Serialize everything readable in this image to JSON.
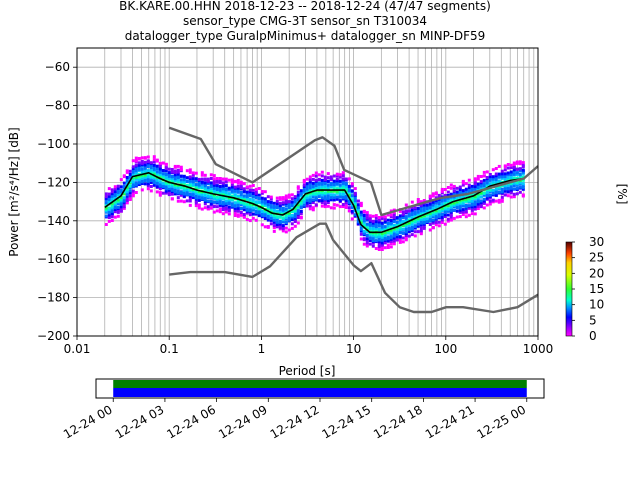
{
  "chart_data": [
    {
      "type": "heatmap",
      "title": [
        "BK.KARE.00.HHN   2018-12-23 -- 2018-12-24  (47/47 segments)",
        "sensor_type CMG-3T sensor_sn T310034",
        "datalogger_type GuralpMinimus+ datalogger_sn MINP-DF59"
      ],
      "xlabel": "Period [s]",
      "ylabel": "Power [m²/s⁴/Hz] [dB]",
      "x_scale": "log",
      "xlim": [
        0.01,
        1000
      ],
      "ylim": [
        -200,
        -50
      ],
      "x_ticks": [
        0.01,
        0.1,
        1,
        10,
        100,
        1000
      ],
      "x_tick_labels": [
        "0.01",
        "0.1",
        "1",
        "10",
        "100",
        "1000"
      ],
      "y_ticks": [
        -200,
        -180,
        -160,
        -140,
        -120,
        -100,
        -80,
        -60
      ],
      "y_tick_labels": [
        "−200",
        "−180",
        "−160",
        "−140",
        "−120",
        "−100",
        "−80",
        "−60"
      ],
      "grid": true,
      "series": [
        {
          "name": "",
          "color": "#000000",
          "x": [
            0.02,
            0.03,
            0.04,
            0.06,
            0.08,
            0.1,
            0.15,
            0.2,
            0.3,
            0.5,
            0.8,
            1.0,
            1.3,
            1.7,
            2.2,
            3.0,
            4.0,
            5.0,
            6.5,
            8.0,
            10,
            12,
            15,
            20,
            30,
            50,
            80,
            120,
            200,
            300,
            500,
            700
          ],
          "y": [
            -133,
            -127,
            -117,
            -115,
            -118,
            -120,
            -122,
            -124,
            -126,
            -128,
            -131,
            -133,
            -136,
            -137,
            -134,
            -126,
            -124,
            -124,
            -124,
            -124,
            -132,
            -142,
            -146,
            -146,
            -143,
            -138,
            -134,
            -130,
            -127,
            -122,
            -119,
            -118
          ]
        },
        {
          "name": "",
          "color": "#666666",
          "x": [
            0.1,
            0.22,
            0.32,
            0.8,
            3.8,
            4.6,
            6.2,
            7.9,
            15.4,
            20,
            46,
            63,
            90,
            175,
            700,
            1000
          ],
          "y": [
            -91.5,
            -97.4,
            -110.5,
            -120,
            -98,
            -96.5,
            -101,
            -113.5,
            -120,
            -137,
            -132,
            -130,
            -128,
            -126,
            -118,
            -111.5
          ]
        },
        {
          "name": "",
          "color": "#666666",
          "x": [
            0.1,
            0.17,
            0.4,
            0.8,
            1.24,
            2.4,
            4.3,
            5.0,
            6.0,
            10,
            12,
            15.6,
            21.9,
            31.6,
            45,
            70,
            101,
            154,
            328,
            600,
            1000
          ],
          "y": [
            -168,
            -166.7,
            -166.7,
            -169.2,
            -163.7,
            -148.6,
            -141.5,
            -141.5,
            -150,
            -163.2,
            -166.2,
            -162.1,
            -177.5,
            -185,
            -187.5,
            -187.5,
            -185,
            -185,
            -187.5,
            -185,
            -178.5
          ]
        }
      ],
      "density_band": {
        "x": [
          0.02,
          0.03,
          0.04,
          0.06,
          0.08,
          0.1,
          0.15,
          0.2,
          0.3,
          0.5,
          0.8,
          1.0,
          1.3,
          1.7,
          2.2,
          3.0,
          4.0,
          5.0,
          6.5,
          8.0,
          10,
          12,
          15,
          20,
          30,
          50,
          80,
          120,
          200,
          300,
          500,
          700
        ],
        "center": [
          -133,
          -127,
          -117,
          -115,
          -118,
          -120,
          -122,
          -124,
          -126,
          -128,
          -131,
          -133,
          -136,
          -137,
          -134,
          -126,
          -124,
          -124,
          -124,
          -124,
          -132,
          -142,
          -146,
          -146,
          -143,
          -138,
          -134,
          -130,
          -127,
          -122,
          -119,
          -118
        ]
      },
      "colorbar": {
        "label": "[%]",
        "range": [
          0,
          30
        ],
        "ticks": [
          0,
          5,
          10,
          15,
          20,
          25,
          30
        ],
        "tick_labels": [
          "0",
          "5",
          "10",
          "15",
          "20",
          "25",
          "30"
        ]
      }
    },
    {
      "type": "bar",
      "title": "",
      "xlabel": "",
      "ylabel": "",
      "x_ticks": [
        "12-24 00",
        "12-24 03",
        "12-24 06",
        "12-24 09",
        "12-24 12",
        "12-24 15",
        "12-24 18",
        "12-24 21",
        "12-25 00"
      ],
      "x_range_hours": [
        -1,
        25
      ],
      "coverage_hours": [
        0,
        24
      ],
      "colors": {
        "top": "#008000",
        "bottom": "#0000ff"
      }
    }
  ]
}
